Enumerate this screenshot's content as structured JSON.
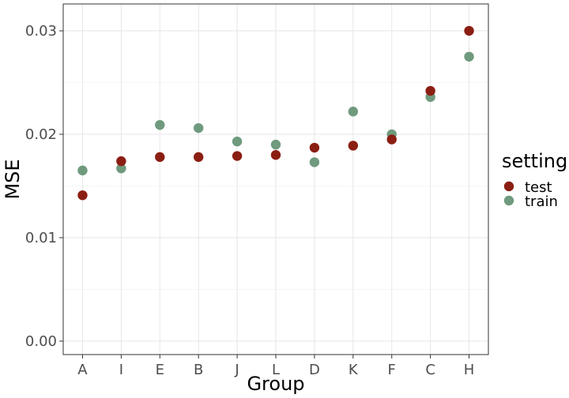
{
  "chart_data": {
    "type": "scatter",
    "xlabel": "Group",
    "ylabel": "MSE",
    "categories": [
      "A",
      "I",
      "E",
      "B",
      "J",
      "L",
      "D",
      "K",
      "F",
      "C",
      "H"
    ],
    "ylim": [
      -0.0013,
      0.0326
    ],
    "yticks": [
      0.0,
      0.01,
      0.02,
      0.03
    ],
    "ytick_labels": [
      "0.00",
      "0.01",
      "0.02",
      "0.03"
    ],
    "grid": true,
    "legend": {
      "title": "setting",
      "position": "right"
    },
    "series": [
      {
        "name": "train",
        "color": "#6f9a7e",
        "values": [
          0.0165,
          0.0167,
          0.0209,
          0.0206,
          0.0193,
          0.019,
          0.0173,
          0.0222,
          0.02,
          0.0236,
          0.0275
        ]
      },
      {
        "name": "test",
        "color": "#8b1e12",
        "values": [
          0.0141,
          0.0174,
          0.0178,
          0.0178,
          0.0179,
          0.018,
          0.0187,
          0.0189,
          0.0195,
          0.0242,
          0.03
        ]
      }
    ],
    "legend_order": [
      "test",
      "train"
    ]
  }
}
